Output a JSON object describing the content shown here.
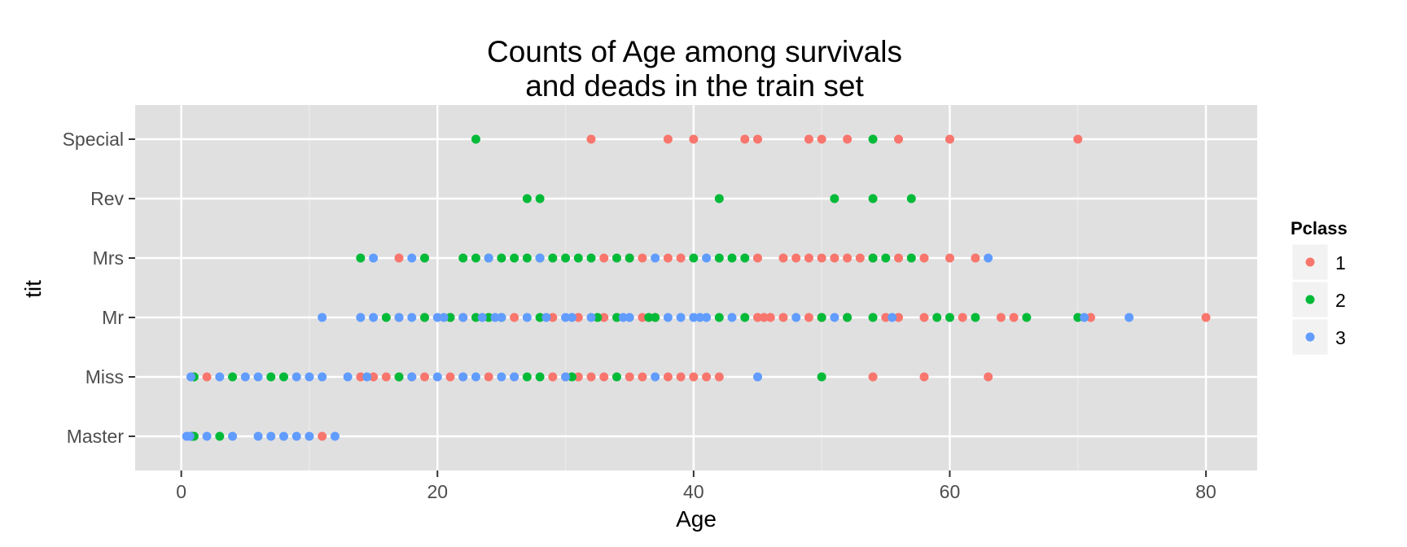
{
  "chart_data": {
    "type": "scatter",
    "title_line1": "Counts of Age among survivals",
    "title_line2": "and deads in the train set",
    "xlabel": "Age",
    "ylabel": "tit",
    "xlim": [
      -3.6,
      84
    ],
    "x_ticks": [
      "0",
      "20",
      "40",
      "60",
      "80"
    ],
    "categories": [
      "Master",
      "Miss",
      "Mr",
      "Mrs",
      "Rev",
      "Special"
    ],
    "grid": true,
    "legend_position": "right",
    "legend_title": "Pclass",
    "colors": {
      "panel": "#e0e0e0",
      "grid_major": "#ffffff",
      "grid_minor": "#ebebeb",
      "legend_key_bg": "#f2f2f2"
    },
    "series": [
      {
        "name": "1",
        "color": "#f8766d",
        "points": [
          [
            "Master",
            11
          ],
          [
            "Master",
            0.92
          ],
          [
            "Miss",
            2
          ],
          [
            "Miss",
            14
          ],
          [
            "Miss",
            15
          ],
          [
            "Miss",
            16
          ],
          [
            "Miss",
            17
          ],
          [
            "Miss",
            18
          ],
          [
            "Miss",
            19
          ],
          [
            "Miss",
            21
          ],
          [
            "Miss",
            22
          ],
          [
            "Miss",
            24
          ],
          [
            "Miss",
            26
          ],
          [
            "Miss",
            29
          ],
          [
            "Miss",
            30
          ],
          [
            "Miss",
            31
          ],
          [
            "Miss",
            32
          ],
          [
            "Miss",
            33
          ],
          [
            "Miss",
            35
          ],
          [
            "Miss",
            36
          ],
          [
            "Miss",
            38
          ],
          [
            "Miss",
            39
          ],
          [
            "Miss",
            40
          ],
          [
            "Miss",
            41
          ],
          [
            "Miss",
            42
          ],
          [
            "Miss",
            54
          ],
          [
            "Miss",
            58
          ],
          [
            "Miss",
            63
          ],
          [
            "Mr",
            17
          ],
          [
            "Mr",
            19
          ],
          [
            "Mr",
            21
          ],
          [
            "Mr",
            22
          ],
          [
            "Mr",
            26
          ],
          [
            "Mr",
            29
          ],
          [
            "Mr",
            31
          ],
          [
            "Mr",
            33
          ],
          [
            "Mr",
            36
          ],
          [
            "Mr",
            37
          ],
          [
            "Mr",
            45
          ],
          [
            "Mr",
            45.5
          ],
          [
            "Mr",
            46
          ],
          [
            "Mr",
            47
          ],
          [
            "Mr",
            49
          ],
          [
            "Mr",
            50
          ],
          [
            "Mr",
            52
          ],
          [
            "Mr",
            55
          ],
          [
            "Mr",
            56
          ],
          [
            "Mr",
            58
          ],
          [
            "Mr",
            61
          ],
          [
            "Mr",
            64
          ],
          [
            "Mr",
            65
          ],
          [
            "Mr",
            71
          ],
          [
            "Mr",
            80
          ],
          [
            "Mrs",
            17
          ],
          [
            "Mrs",
            33
          ],
          [
            "Mrs",
            35
          ],
          [
            "Mrs",
            36
          ],
          [
            "Mrs",
            38
          ],
          [
            "Mrs",
            39
          ],
          [
            "Mrs",
            45
          ],
          [
            "Mrs",
            47
          ],
          [
            "Mrs",
            48
          ],
          [
            "Mrs",
            49
          ],
          [
            "Mrs",
            50
          ],
          [
            "Mrs",
            51
          ],
          [
            "Mrs",
            52
          ],
          [
            "Mrs",
            53
          ],
          [
            "Mrs",
            54
          ],
          [
            "Mrs",
            56
          ],
          [
            "Mrs",
            58
          ],
          [
            "Mrs",
            60
          ],
          [
            "Mrs",
            62
          ],
          [
            "Special",
            32
          ],
          [
            "Special",
            38
          ],
          [
            "Special",
            40
          ],
          [
            "Special",
            44
          ],
          [
            "Special",
            45
          ],
          [
            "Special",
            49
          ],
          [
            "Special",
            50
          ],
          [
            "Special",
            52
          ],
          [
            "Special",
            56
          ],
          [
            "Special",
            60
          ],
          [
            "Special",
            70
          ]
        ]
      },
      {
        "name": "2",
        "color": "#00ba38",
        "points": [
          [
            "Master",
            0.83
          ],
          [
            "Master",
            1
          ],
          [
            "Master",
            3
          ],
          [
            "Miss",
            1
          ],
          [
            "Miss",
            4
          ],
          [
            "Miss",
            7
          ],
          [
            "Miss",
            8
          ],
          [
            "Miss",
            17
          ],
          [
            "Miss",
            27
          ],
          [
            "Miss",
            28
          ],
          [
            "Miss",
            30.5
          ],
          [
            "Miss",
            34
          ],
          [
            "Miss",
            50
          ],
          [
            "Mr",
            16
          ],
          [
            "Mr",
            19
          ],
          [
            "Mr",
            21
          ],
          [
            "Mr",
            23
          ],
          [
            "Mr",
            24
          ],
          [
            "Mr",
            25
          ],
          [
            "Mr",
            28
          ],
          [
            "Mr",
            32.5
          ],
          [
            "Mr",
            34
          ],
          [
            "Mr",
            36.5
          ],
          [
            "Mr",
            37
          ],
          [
            "Mr",
            42
          ],
          [
            "Mr",
            44
          ],
          [
            "Mr",
            50
          ],
          [
            "Mr",
            52
          ],
          [
            "Mr",
            54
          ],
          [
            "Mr",
            59
          ],
          [
            "Mr",
            60
          ],
          [
            "Mr",
            62
          ],
          [
            "Mr",
            66
          ],
          [
            "Mr",
            70
          ],
          [
            "Mrs",
            14
          ],
          [
            "Mrs",
            19
          ],
          [
            "Mrs",
            22
          ],
          [
            "Mrs",
            23
          ],
          [
            "Mrs",
            24
          ],
          [
            "Mrs",
            25
          ],
          [
            "Mrs",
            26
          ],
          [
            "Mrs",
            27
          ],
          [
            "Mrs",
            28
          ],
          [
            "Mrs",
            29
          ],
          [
            "Mrs",
            30
          ],
          [
            "Mrs",
            31
          ],
          [
            "Mrs",
            32
          ],
          [
            "Mrs",
            34
          ],
          [
            "Mrs",
            35
          ],
          [
            "Mrs",
            40
          ],
          [
            "Mrs",
            42
          ],
          [
            "Mrs",
            43
          ],
          [
            "Mrs",
            44
          ],
          [
            "Mrs",
            54
          ],
          [
            "Mrs",
            55
          ],
          [
            "Mrs",
            57
          ],
          [
            "Rev",
            27
          ],
          [
            "Rev",
            28
          ],
          [
            "Rev",
            42
          ],
          [
            "Rev",
            51
          ],
          [
            "Rev",
            54
          ],
          [
            "Rev",
            57
          ],
          [
            "Special",
            23
          ],
          [
            "Special",
            54
          ]
        ]
      },
      {
        "name": "3",
        "color": "#619cff",
        "points": [
          [
            "Master",
            0.42
          ],
          [
            "Master",
            0.67
          ],
          [
            "Master",
            2
          ],
          [
            "Master",
            4
          ],
          [
            "Master",
            6
          ],
          [
            "Master",
            7
          ],
          [
            "Master",
            8
          ],
          [
            "Master",
            9
          ],
          [
            "Master",
            10
          ],
          [
            "Master",
            12
          ],
          [
            "Miss",
            0.75
          ],
          [
            "Miss",
            3
          ],
          [
            "Miss",
            5
          ],
          [
            "Miss",
            6
          ],
          [
            "Miss",
            9
          ],
          [
            "Miss",
            10
          ],
          [
            "Miss",
            11
          ],
          [
            "Miss",
            13
          ],
          [
            "Miss",
            14.5
          ],
          [
            "Miss",
            18
          ],
          [
            "Miss",
            20
          ],
          [
            "Miss",
            22
          ],
          [
            "Miss",
            23
          ],
          [
            "Miss",
            25
          ],
          [
            "Miss",
            26
          ],
          [
            "Miss",
            30
          ],
          [
            "Miss",
            37
          ],
          [
            "Miss",
            45
          ],
          [
            "Mr",
            11
          ],
          [
            "Mr",
            14
          ],
          [
            "Mr",
            15
          ],
          [
            "Mr",
            17
          ],
          [
            "Mr",
            18
          ],
          [
            "Mr",
            20
          ],
          [
            "Mr",
            20.5
          ],
          [
            "Mr",
            22
          ],
          [
            "Mr",
            23.5
          ],
          [
            "Mr",
            24.5
          ],
          [
            "Mr",
            25
          ],
          [
            "Mr",
            27
          ],
          [
            "Mr",
            28.5
          ],
          [
            "Mr",
            30
          ],
          [
            "Mr",
            30.5
          ],
          [
            "Mr",
            32
          ],
          [
            "Mr",
            34.5
          ],
          [
            "Mr",
            35
          ],
          [
            "Mr",
            38
          ],
          [
            "Mr",
            39
          ],
          [
            "Mr",
            40
          ],
          [
            "Mr",
            40.5
          ],
          [
            "Mr",
            41
          ],
          [
            "Mr",
            43
          ],
          [
            "Mr",
            48
          ],
          [
            "Mr",
            51
          ],
          [
            "Mr",
            55.5
          ],
          [
            "Mr",
            70.5
          ],
          [
            "Mr",
            74
          ],
          [
            "Mrs",
            15
          ],
          [
            "Mrs",
            18
          ],
          [
            "Mrs",
            24
          ],
          [
            "Mrs",
            28
          ],
          [
            "Mrs",
            37
          ],
          [
            "Mrs",
            41
          ],
          [
            "Mrs",
            63
          ]
        ]
      }
    ]
  }
}
